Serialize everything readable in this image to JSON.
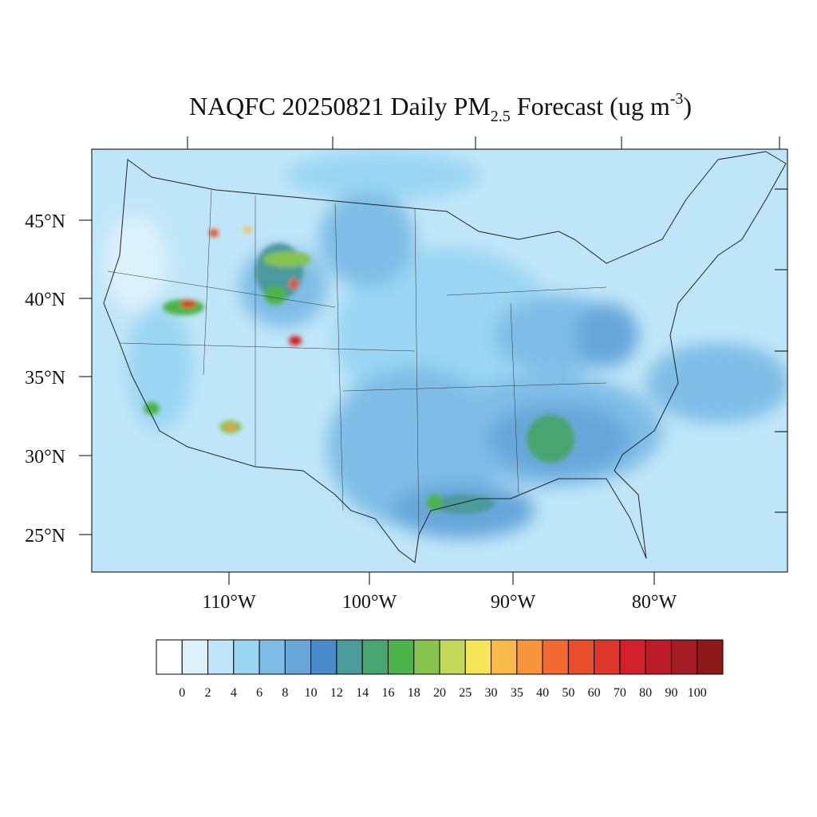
{
  "title": {
    "main": "NAQFC 20250821 Daily PM",
    "subscript": "2.5",
    "middle": " Forecast (ug m",
    "superscript": "-3",
    "end": ")"
  },
  "map": {
    "lat_labels": [
      "45°N",
      "40°N",
      "35°N",
      "30°N",
      "25°N"
    ],
    "lon_labels": [
      "110°W",
      "100°W",
      "90°W",
      "80°W"
    ]
  },
  "colorbar": {
    "levels": [
      0,
      2,
      4,
      6,
      8,
      10,
      12,
      14,
      16,
      18,
      20,
      25,
      30,
      35,
      40,
      50,
      60,
      70,
      80,
      90,
      100
    ],
    "colors": [
      "#ffffff",
      "#ddf1fb",
      "#bfe6f8",
      "#9ad6f3",
      "#7fbde6",
      "#67a7da",
      "#4a8cc9",
      "#4b9a9c",
      "#49a56f",
      "#4bb348",
      "#86c34f",
      "#c3d75a",
      "#f6e558",
      "#f8bb4b",
      "#f7953d",
      "#f26a31",
      "#e84d2c",
      "#dc372a",
      "#d0202b",
      "#bb1c27",
      "#a51b23",
      "#8c1819"
    ]
  }
}
